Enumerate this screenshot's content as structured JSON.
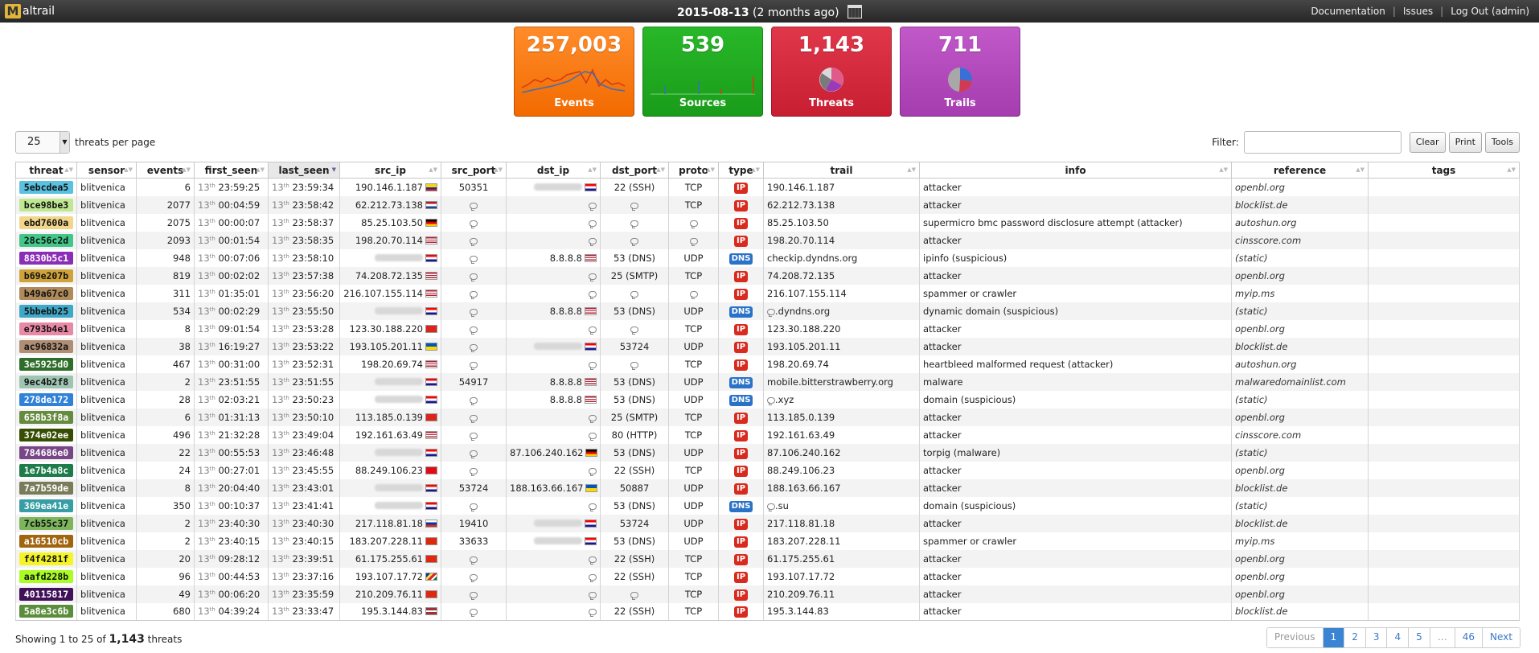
{
  "header": {
    "app_name": "altrail",
    "logo_letter": "M",
    "date": "2015-08-13",
    "date_rel": "(2 months ago)",
    "links": [
      "Documentation",
      "Issues",
      "Log Out (admin)"
    ]
  },
  "cards": {
    "events": {
      "value": "257,003",
      "label": "Events",
      "color": "#f57a10"
    },
    "sources": {
      "value": "539",
      "label": "Sources",
      "color": "#22ac22"
    },
    "threats": {
      "value": "1,143",
      "label": "Threats",
      "color": "#d42a3e"
    },
    "trails": {
      "value": "711",
      "label": "Trails",
      "color": "#b34bbd"
    }
  },
  "controls": {
    "per_page": "25",
    "per_page_label": "threats per page",
    "filter_label": "Filter:",
    "buttons": [
      "Clear",
      "Print",
      "Tools"
    ]
  },
  "table": {
    "columns": [
      "threat",
      "sensor",
      "events",
      "first_seen",
      "last_seen",
      "src_ip",
      "src_port",
      "dst_ip",
      "dst_port",
      "proto",
      "type",
      "trail",
      "info",
      "reference",
      "tags"
    ],
    "sorted_column": "last_seen",
    "rows": [
      {
        "threat": "5ebcdea5",
        "color": "#5ac1e0",
        "sensor": "blitvenica",
        "events": "6",
        "first_seen": "23:59:25",
        "last_seen": "23:59:34",
        "src_ip": "190.146.1.187",
        "src_flag": "co",
        "src_port": "50351",
        "dst_ip": "",
        "dst_flag": "hr",
        "dst_port": "22 (SSH)",
        "proto": "TCP",
        "type": "IP",
        "trail": "190.146.1.187",
        "info": "attacker",
        "reference": "openbl.org"
      },
      {
        "threat": "bce98be3",
        "color": "#bfe890",
        "sensor": "blitvenica",
        "events": "2077",
        "first_seen": "00:04:59",
        "last_seen": "23:58:42",
        "src_ip": "62.212.73.138",
        "src_flag": "nl",
        "src_port": "",
        "dst_ip": "",
        "dst_flag": "",
        "dst_port": "",
        "proto": "TCP",
        "type": "IP",
        "trail": "62.212.73.138",
        "info": "attacker",
        "reference": "blocklist.de"
      },
      {
        "threat": "ebd7600a",
        "color": "#f2d78a",
        "sensor": "blitvenica",
        "events": "2075",
        "first_seen": "00:00:07",
        "last_seen": "23:58:37",
        "src_ip": "85.25.103.50",
        "src_flag": "de",
        "src_port": "",
        "dst_ip": "",
        "dst_flag": "",
        "dst_port": "",
        "proto": "",
        "type": "IP",
        "trail": "85.25.103.50",
        "info": "supermicro bmc password disclosure attempt (attacker)",
        "reference": "autoshun.org"
      },
      {
        "threat": "28c56c2d",
        "color": "#42c78a",
        "sensor": "blitvenica",
        "events": "2093",
        "first_seen": "00:01:54",
        "last_seen": "23:58:35",
        "src_ip": "198.20.70.114",
        "src_flag": "us",
        "src_port": "",
        "dst_ip": "",
        "dst_flag": "",
        "dst_port": "",
        "proto": "",
        "type": "IP",
        "trail": "198.20.70.114",
        "info": "attacker",
        "reference": "cinsscore.com"
      },
      {
        "threat": "8830b5c1",
        "color": "#8a2eb8",
        "sensor": "blitvenica",
        "events": "948",
        "first_seen": "00:07:06",
        "last_seen": "23:58:10",
        "src_ip": "",
        "src_flag": "hr",
        "src_port": "",
        "dst_ip": "8.8.8.8",
        "dst_flag": "us",
        "dst_port": "53 (DNS)",
        "proto": "UDP",
        "type": "DNS",
        "trail": "checkip.dyndns.org",
        "info": "ipinfo (suspicious)",
        "reference": "(static)"
      },
      {
        "threat": "b69e207b",
        "color": "#d0a23a",
        "sensor": "blitvenica",
        "events": "819",
        "first_seen": "00:02:02",
        "last_seen": "23:57:38",
        "src_ip": "74.208.72.135",
        "src_flag": "us",
        "src_port": "",
        "dst_ip": "",
        "dst_flag": "",
        "dst_port": "25 (SMTP)",
        "proto": "TCP",
        "type": "IP",
        "trail": "74.208.72.135",
        "info": "attacker",
        "reference": "openbl.org"
      },
      {
        "threat": "b49a67c0",
        "color": "#b08a5a",
        "sensor": "blitvenica",
        "events": "311",
        "first_seen": "01:35:01",
        "last_seen": "23:56:20",
        "src_ip": "216.107.155.114",
        "src_flag": "us",
        "src_port": "",
        "dst_ip": "",
        "dst_flag": "",
        "dst_port": "",
        "proto": "",
        "type": "IP",
        "trail": "216.107.155.114",
        "info": "spammer or crawler",
        "reference": "myip.ms"
      },
      {
        "threat": "5bbebb25",
        "color": "#3fa8c8",
        "sensor": "blitvenica",
        "events": "534",
        "first_seen": "00:02:29",
        "last_seen": "23:55:50",
        "src_ip": "",
        "src_flag": "hr",
        "src_port": "",
        "dst_ip": "8.8.8.8",
        "dst_flag": "us",
        "dst_port": "53 (DNS)",
        "proto": "UDP",
        "type": "DNS",
        "trail": ".dyndns.org",
        "info": "dynamic domain (suspicious)",
        "reference": "(static)"
      },
      {
        "threat": "e793b4e1",
        "color": "#e88aa6",
        "sensor": "blitvenica",
        "events": "8",
        "first_seen": "09:01:54",
        "last_seen": "23:53:28",
        "src_ip": "123.30.188.220",
        "src_flag": "vn",
        "src_port": "",
        "dst_ip": "",
        "dst_flag": "",
        "dst_port": "",
        "proto": "TCP",
        "type": "IP",
        "trail": "123.30.188.220",
        "info": "attacker",
        "reference": "openbl.org"
      },
      {
        "threat": "ac96832a",
        "color": "#b08e74",
        "sensor": "blitvenica",
        "events": "38",
        "first_seen": "16:19:27",
        "last_seen": "23:53:22",
        "src_ip": "193.105.201.11",
        "src_flag": "ua",
        "src_port": "",
        "dst_ip": "",
        "dst_flag": "hr",
        "dst_port": "53724",
        "proto": "UDP",
        "type": "IP",
        "trail": "193.105.201.11",
        "info": "attacker",
        "reference": "blocklist.de"
      },
      {
        "threat": "3e5925d0",
        "color": "#2e6e2a",
        "sensor": "blitvenica",
        "events": "467",
        "first_seen": "00:31:00",
        "last_seen": "23:52:31",
        "src_ip": "198.20.69.74",
        "src_flag": "us",
        "src_port": "",
        "dst_ip": "",
        "dst_flag": "",
        "dst_port": "",
        "proto": "TCP",
        "type": "IP",
        "trail": "198.20.69.74",
        "info": "heartbleed malformed request (attacker)",
        "reference": "autoshun.org"
      },
      {
        "threat": "9ec4b2f8",
        "color": "#9ec4b2",
        "sensor": "blitvenica",
        "events": "2",
        "first_seen": "23:51:55",
        "last_seen": "23:51:55",
        "src_ip": "",
        "src_flag": "hr",
        "src_port": "54917",
        "dst_ip": "8.8.8.8",
        "dst_flag": "us",
        "dst_port": "53 (DNS)",
        "proto": "UDP",
        "type": "DNS",
        "trail": "mobile.bitterstrawberry.org",
        "info": "malware",
        "reference": "malwaredomainlist.com"
      },
      {
        "threat": "278de172",
        "color": "#2f82d8",
        "sensor": "blitvenica",
        "events": "28",
        "first_seen": "02:03:21",
        "last_seen": "23:50:23",
        "src_ip": "",
        "src_flag": "hr",
        "src_port": "",
        "dst_ip": "8.8.8.8",
        "dst_flag": "us",
        "dst_port": "53 (DNS)",
        "proto": "UDP",
        "type": "DNS",
        "trail": ".xyz",
        "info": "domain (suspicious)",
        "reference": "(static)"
      },
      {
        "threat": "658b3f8a",
        "color": "#658b3f",
        "sensor": "blitvenica",
        "events": "6",
        "first_seen": "01:31:13",
        "last_seen": "23:50:10",
        "src_ip": "113.185.0.139",
        "src_flag": "vn",
        "src_port": "",
        "dst_ip": "",
        "dst_flag": "",
        "dst_port": "25 (SMTP)",
        "proto": "TCP",
        "type": "IP",
        "trail": "113.185.0.139",
        "info": "attacker",
        "reference": "openbl.org"
      },
      {
        "threat": "374e02ee",
        "color": "#374e02",
        "sensor": "blitvenica",
        "events": "496",
        "first_seen": "21:32:28",
        "last_seen": "23:49:04",
        "src_ip": "192.161.63.49",
        "src_flag": "us",
        "src_port": "",
        "dst_ip": "",
        "dst_flag": "",
        "dst_port": "80 (HTTP)",
        "proto": "TCP",
        "type": "IP",
        "trail": "192.161.63.49",
        "info": "attacker",
        "reference": "cinsscore.com"
      },
      {
        "threat": "784686e0",
        "color": "#784686",
        "sensor": "blitvenica",
        "events": "22",
        "first_seen": "00:55:53",
        "last_seen": "23:46:48",
        "src_ip": "",
        "src_flag": "hr",
        "src_port": "",
        "dst_ip": "87.106.240.162",
        "dst_flag": "de",
        "dst_port": "53 (DNS)",
        "proto": "UDP",
        "type": "IP",
        "trail": "87.106.240.162",
        "info": "torpig (malware)",
        "reference": "(static)"
      },
      {
        "threat": "1e7b4a8c",
        "color": "#1e7b4a",
        "sensor": "blitvenica",
        "events": "24",
        "first_seen": "00:27:01",
        "last_seen": "23:45:55",
        "src_ip": "88.249.106.23",
        "src_flag": "tr",
        "src_port": "",
        "dst_ip": "",
        "dst_flag": "",
        "dst_port": "22 (SSH)",
        "proto": "TCP",
        "type": "IP",
        "trail": "88.249.106.23",
        "info": "attacker",
        "reference": "openbl.org"
      },
      {
        "threat": "7a7b59de",
        "color": "#7a7b59",
        "sensor": "blitvenica",
        "events": "8",
        "first_seen": "20:04:40",
        "last_seen": "23:43:01",
        "src_ip": "",
        "src_flag": "hr",
        "src_port": "53724",
        "dst_ip": "188.163.66.167",
        "dst_flag": "ua",
        "dst_port": "50887",
        "proto": "UDP",
        "type": "IP",
        "trail": "188.163.66.167",
        "info": "attacker",
        "reference": "blocklist.de"
      },
      {
        "threat": "369ea41e",
        "color": "#369ea4",
        "sensor": "blitvenica",
        "events": "350",
        "first_seen": "00:10:37",
        "last_seen": "23:41:41",
        "src_ip": "",
        "src_flag": "hr",
        "src_port": "",
        "dst_ip": "",
        "dst_flag": "",
        "dst_port": "53 (DNS)",
        "proto": "UDP",
        "type": "DNS",
        "trail": ".su",
        "info": "domain (suspicious)",
        "reference": "(static)"
      },
      {
        "threat": "7cb55c37",
        "color": "#7cb55c",
        "sensor": "blitvenica",
        "events": "2",
        "first_seen": "23:40:30",
        "last_seen": "23:40:30",
        "src_ip": "217.118.81.18",
        "src_flag": "ru",
        "src_port": "19410",
        "dst_ip": "",
        "dst_flag": "hr",
        "dst_port": "53724",
        "proto": "UDP",
        "type": "IP",
        "trail": "217.118.81.18",
        "info": "attacker",
        "reference": "blocklist.de"
      },
      {
        "threat": "a16510cb",
        "color": "#a16510",
        "sensor": "blitvenica",
        "events": "2",
        "first_seen": "23:40:15",
        "last_seen": "23:40:15",
        "src_ip": "183.207.228.11",
        "src_flag": "cn",
        "src_port": "33633",
        "dst_ip": "",
        "dst_flag": "hr",
        "dst_port": "53 (DNS)",
        "proto": "UDP",
        "type": "IP",
        "trail": "183.207.228.11",
        "info": "spammer or crawler",
        "reference": "myip.ms"
      },
      {
        "threat": "f4f4281f",
        "color": "#f4f428",
        "sensor": "blitvenica",
        "events": "20",
        "first_seen": "09:28:12",
        "last_seen": "23:39:51",
        "src_ip": "61.175.255.61",
        "src_flag": "cn",
        "src_port": "",
        "dst_ip": "",
        "dst_flag": "",
        "dst_port": "22 (SSH)",
        "proto": "TCP",
        "type": "IP",
        "trail": "61.175.255.61",
        "info": "attacker",
        "reference": "openbl.org"
      },
      {
        "threat": "aafd228b",
        "color": "#aafd22",
        "sensor": "blitvenica",
        "events": "96",
        "first_seen": "00:44:53",
        "last_seen": "23:37:16",
        "src_ip": "193.107.17.72",
        "src_flag": "sc",
        "src_port": "",
        "dst_ip": "",
        "dst_flag": "",
        "dst_port": "22 (SSH)",
        "proto": "TCP",
        "type": "IP",
        "trail": "193.107.17.72",
        "info": "attacker",
        "reference": "openbl.org"
      },
      {
        "threat": "40115817",
        "color": "#401158",
        "sensor": "blitvenica",
        "events": "49",
        "first_seen": "00:06:20",
        "last_seen": "23:35:59",
        "src_ip": "210.209.76.11",
        "src_flag": "hk",
        "src_port": "",
        "dst_ip": "",
        "dst_flag": "",
        "dst_port": "",
        "proto": "TCP",
        "type": "IP",
        "trail": "210.209.76.11",
        "info": "attacker",
        "reference": "openbl.org"
      },
      {
        "threat": "5a8e3c6b",
        "color": "#5a8e3c",
        "sensor": "blitvenica",
        "events": "680",
        "first_seen": "04:39:24",
        "last_seen": "23:33:47",
        "src_ip": "195.3.144.83",
        "src_flag": "lv",
        "src_port": "",
        "dst_ip": "",
        "dst_flag": "",
        "dst_port": "22 (SSH)",
        "proto": "TCP",
        "type": "IP",
        "trail": "195.3.144.83",
        "info": "attacker",
        "reference": "blocklist.de"
      }
    ]
  },
  "footer": {
    "showing_prefix": "Showing 1 to 25 of",
    "total": "1,143",
    "suffix": "threats",
    "pages": [
      "Previous",
      "1",
      "2",
      "3",
      "4",
      "5",
      "…",
      "46",
      "Next"
    ],
    "active_page": "1"
  }
}
